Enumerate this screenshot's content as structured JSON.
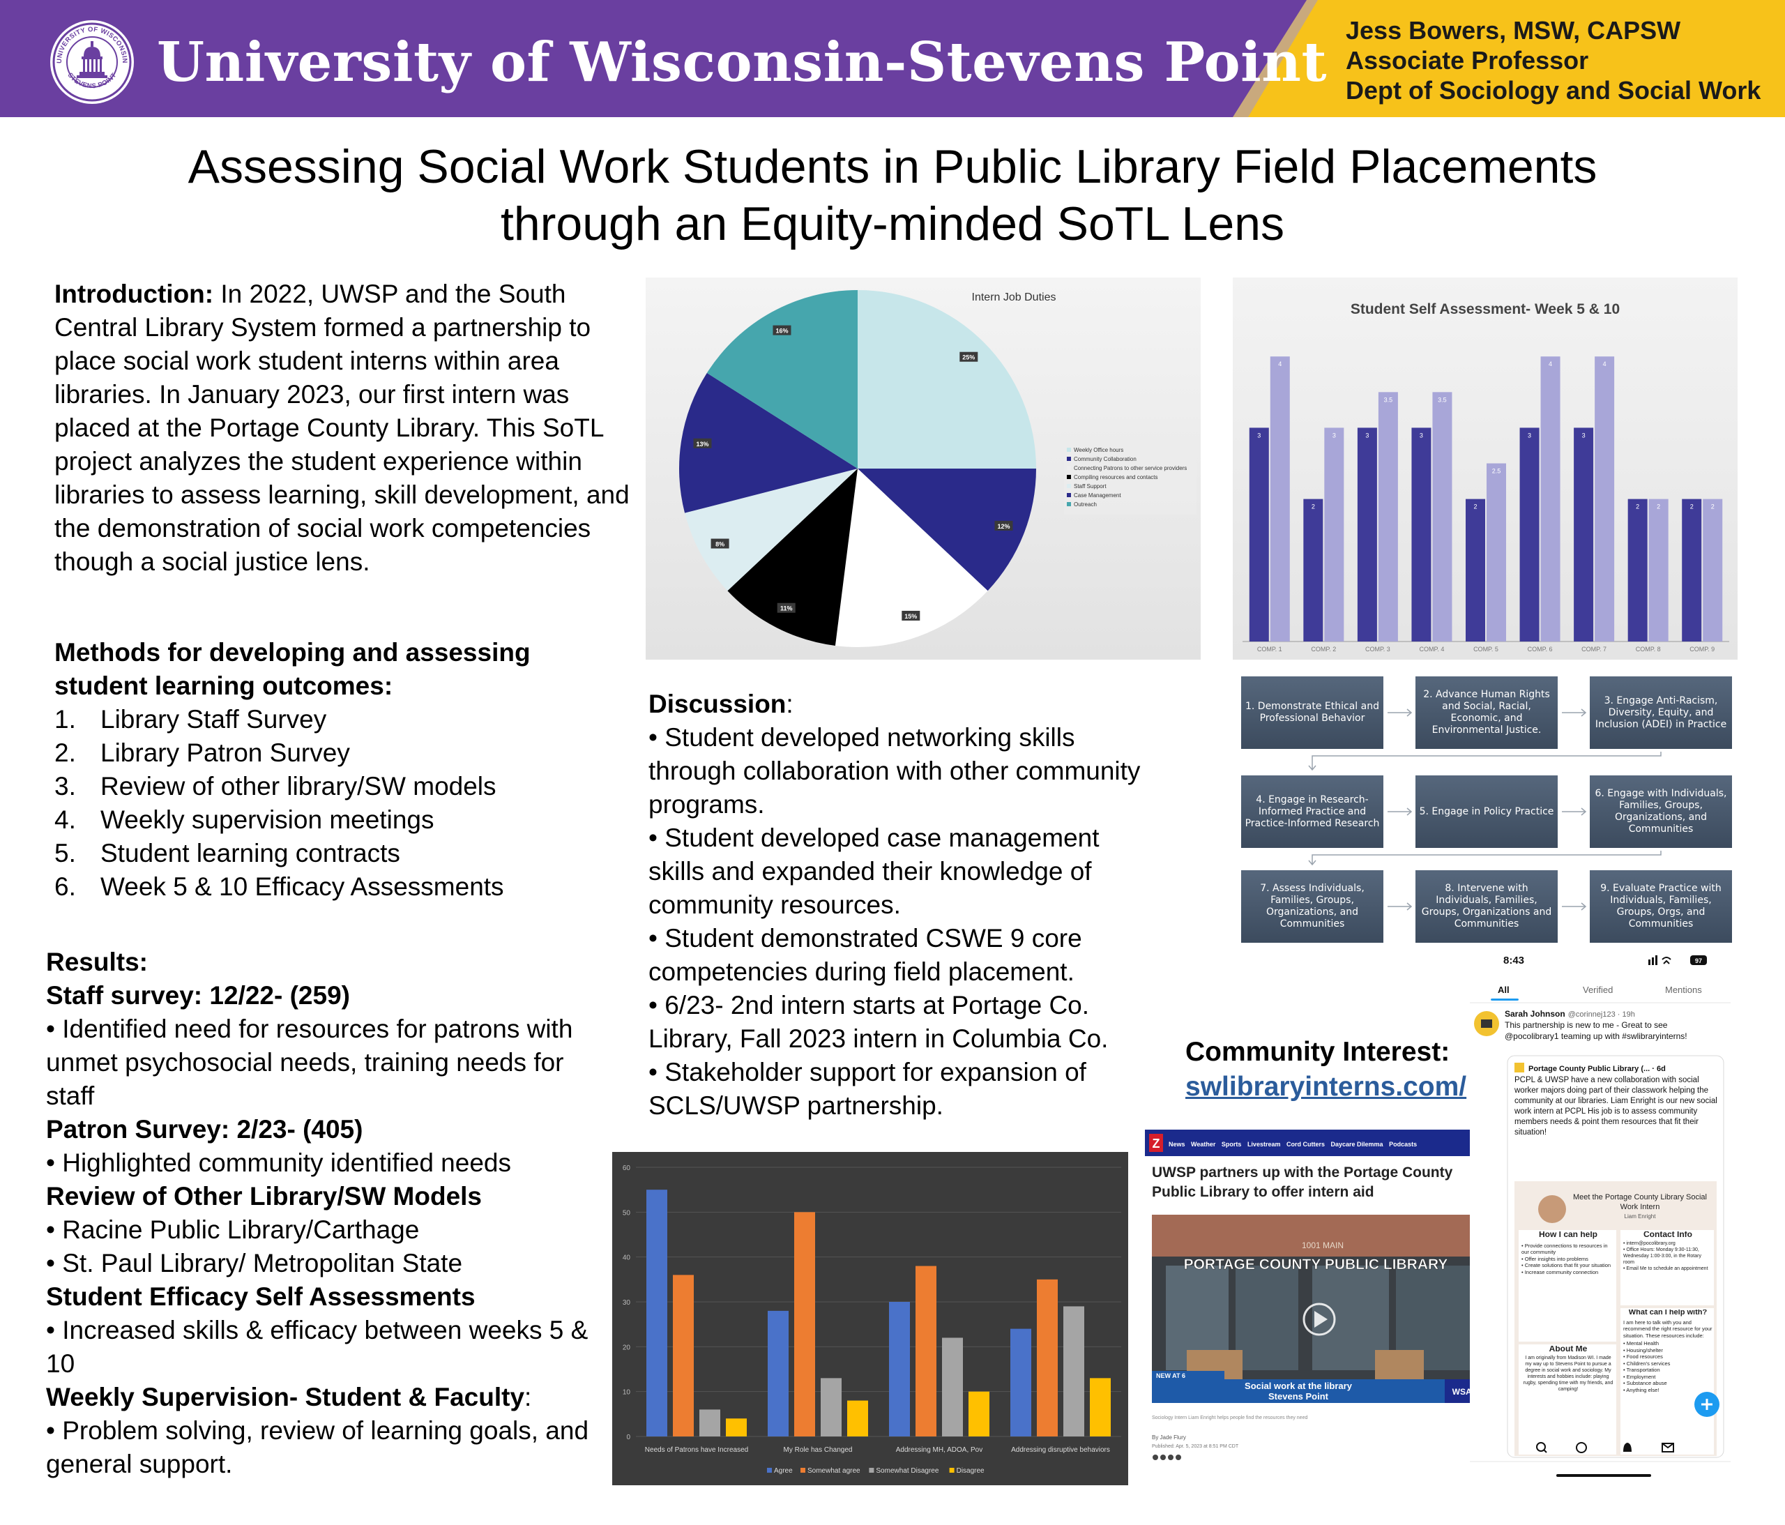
{
  "header": {
    "university": "University of Wisconsin-Stevens Point",
    "seal_top": "UNIVERSITY OF WISCONSIN",
    "seal_bottom": "STEVENS POINT",
    "author_name": "Jess Bowers, MSW, CAPSW",
    "author_title": "Associate Professor",
    "author_dept": "Dept of Sociology and Social Work",
    "colors": {
      "purple": "#6a3fa0",
      "gold": "#f7c21a"
    }
  },
  "title": {
    "line1": "Assessing Social Work Students in Public Library Field Placements",
    "line2": "through an Equity-minded SoTL Lens"
  },
  "intro": {
    "label": "Introduction:",
    "text": " In 2022, UWSP and the South Central Library System formed a partnership to place social work student interns within area libraries. In January 2023, our first intern was placed at the Portage County Library. This SoTL project analyzes the student experience within libraries to assess learning, skill development, and the demonstration of social work competencies though a social justice lens."
  },
  "methods": {
    "heading": "Methods for developing and assessing student learning outcomes:",
    "items": [
      {
        "n": "1.",
        "text": "Library Staff Survey"
      },
      {
        "n": "2.",
        "text": "Library Patron Survey"
      },
      {
        "n": "3.",
        "text": "Review of other library/SW models"
      },
      {
        "n": "4.",
        "text": "Weekly supervision meetings"
      },
      {
        "n": "5.",
        "text": "Student learning contracts"
      },
      {
        "n": "6.",
        "text": "Week 5 & 10 Efficacy Assessments"
      }
    ]
  },
  "results": {
    "heading": "Results:",
    "staff_heading": "Staff survey: 12/22- (259)",
    "staff_text": "• Identified need for resources for patrons with unmet psychosocial needs, training needs for staff",
    "patron_heading": "Patron Survey: 2/23- (405)",
    "patron_text": "• Highlighted community identified needs",
    "review_heading": "Review of Other Library/SW Models",
    "review_items": [
      "• Racine Public Library/Carthage",
      "• St. Paul Library/ Metropolitan State"
    ],
    "efficacy_heading": "Student Efficacy Self Assessments",
    "efficacy_text": "• Increased skills & efficacy between weeks 5 & 10",
    "weekly_heading": "Weekly Supervision- Student & Faculty",
    "weekly_colon": ":",
    "weekly_text": "• Problem solving, review of learning goals, and general support."
  },
  "discussion": {
    "heading": "Discussion",
    "colon": ":",
    "items": [
      "• Student developed networking skills through collaboration with other community programs.",
      "• Student developed case management skills and expanded their knowledge of community resources.",
      "• Student demonstrated CSWE 9 core competencies during field placement.",
      "•  6/23- 2nd intern starts at Portage Co. Library, Fall 2023 intern in Columbia Co.",
      "• Stakeholder support for expansion of SCLS/UWSP partnership."
    ]
  },
  "community": {
    "heading": "Community Interest:",
    "link": "swlibraryinterns.com/"
  },
  "chart_data": [
    {
      "type": "pie",
      "title": "Intern Job Duties",
      "slices": [
        {
          "label": "Weekly Office hours",
          "value": 25,
          "label_text": "25%",
          "color": "#c7e6ea"
        },
        {
          "label": "Community Collaboration",
          "value": 12,
          "label_text": "12%",
          "color": "#2a2a8a"
        },
        {
          "label": "Connecting Patrons to other service providers",
          "value": 15,
          "label_text": "15%",
          "color": "#ffffff"
        },
        {
          "label": "Compiling resources and contacts",
          "value": 11,
          "label_text": "11%",
          "color": "#000000"
        },
        {
          "label": "Staff Support",
          "value": 8,
          "label_text": "8%",
          "color": "#dcedf1"
        },
        {
          "label": "Case Management",
          "value": 13,
          "label_text": "13%",
          "color": "#2a2a8a"
        },
        {
          "label": "Outreach",
          "value": 16,
          "label_text": "16%",
          "color": "#46a6ad"
        }
      ],
      "legend": "right"
    },
    {
      "type": "bar",
      "title": "Student Self Assessment- Week 5 & 10",
      "categories": [
        "COMP. 1",
        "COMP. 2",
        "COMP. 3",
        "COMP. 4",
        "COMP. 5",
        "COMP. 6",
        "COMP. 7",
        "COMP. 8",
        "COMP. 9"
      ],
      "series": [
        {
          "values": [
            3,
            2,
            3,
            3,
            2,
            3,
            3,
            2,
            2
          ],
          "labels": [
            "3",
            "2",
            "3",
            "3",
            "2",
            "3",
            "3",
            "2",
            "2"
          ],
          "color": "#3f3b98"
        },
        {
          "values": [
            4,
            3,
            3.5,
            3.5,
            2.5,
            4,
            4,
            2,
            2
          ],
          "labels": [
            "4",
            "3",
            "3.5",
            "3.5",
            "2.5",
            "4",
            "4",
            "2",
            "2"
          ],
          "color": "#a8a6d8"
        }
      ],
      "ylim": [
        0,
        4.6
      ]
    },
    {
      "type": "bar",
      "categories": [
        "Needs of Patrons have Increased",
        "My Role has Changed",
        "Addressing MH, ADOA, Pov",
        "Addressing disruptive behaviors"
      ],
      "series": [
        {
          "name": "Agree",
          "values": [
            55,
            28,
            30,
            24
          ],
          "color": "#4a72c9"
        },
        {
          "name": "Somewhat agree",
          "values": [
            36,
            50,
            38,
            35
          ],
          "color": "#ed7d31"
        },
        {
          "name": "Somewhat Disagree",
          "values": [
            6,
            13,
            22,
            29
          ],
          "color": "#a5a5a5"
        },
        {
          "name": "Disagree",
          "values": [
            4,
            8,
            10,
            13
          ],
          "color": "#ffc000"
        }
      ],
      "yticks": [
        "0",
        "10",
        "20",
        "30",
        "40",
        "50",
        "60"
      ],
      "ylim": [
        0,
        60
      ],
      "legend": "bottom",
      "grid": true
    }
  ],
  "competencies": [
    "1. Demonstrate Ethical and Professional Behavior",
    "2. Advance Human Rights and Social, Racial, Economic, and Environmental Justice.",
    "3. Engage Anti-Racism, Diversity, Equity, and Inclusion (ADEI) in Practice",
    "4. Engage in Research-Informed Practice and Practice-Informed Research",
    "5. Engage in Policy Practice",
    "6. Engage with Individuals, Families, Groups, Organizations, and Communities",
    "7. Assess Individuals, Families, Groups, Organizations, and Communities",
    "8. Intervene with Individuals, Families, Groups, Organizations and Communities",
    "9. Evaluate Practice with Individuals, Families, Groups, Orgs, and Communities"
  ],
  "news": {
    "nav": [
      "Z",
      "News",
      "Weather",
      "Sports",
      "Livestream",
      "Cord Cutters",
      "Daycare Dilemma",
      "Podcasts"
    ],
    "headline": "UWSP partners up with the Portage County Public Library to offer intern aid",
    "sign_main": "PORTAGE COUNTY PUBLIC LIBRARY",
    "sign_address": "1001 MAIN",
    "new_at": "NEW AT 6",
    "lower_third": "Social work at the library",
    "lower_third_2": "Stevens Point",
    "station": "WSAW",
    "caption": "Sociology Intern Liam Enright helps people find the resources they need",
    "byline": "By Jade Flury",
    "published": "Published: Apr. 5, 2023 at 8:51 PM CDT"
  },
  "phone": {
    "time": "8:43",
    "battery": "97",
    "tabs": [
      "All",
      "Verified",
      "Mentions"
    ],
    "user": "Sarah Johnson",
    "handle": "@corinnej123 · 19h",
    "tweet": "This partnership is new to me - Great to see @pocolibrary1 teaming up with #swlibraryinterns!",
    "quoted_user": "Portage County Public Library (... · 6d",
    "quoted_text": "PCPL & UWSP have a new collaboration with social worker majors doing part of their classwork helping the community at our libraries. Liam Enright is our new social work intern at PCPL His job is to assess community members needs & point them resources that fit their situation!",
    "flyer_title": "Meet the Portage County Library Social Work Intern",
    "flyer_name": "Liam Enright",
    "help_heading": "How I can help",
    "help_items": [
      "• Provide connections to resources in our community",
      "• Offer insights into problems",
      "• Create solutions that fit your situation",
      "• Increase community connection"
    ],
    "contact_heading": "Contact Info",
    "contact_items": [
      "• intern@pocolibrary.org",
      "• Office Hours: Monday 9:30-11:30, Wednesday 1:00-3:00, in the Rotary room",
      "• Email Me to schedule an appointment"
    ],
    "what_heading": "What can I help with?",
    "what_text": "I am here to talk with you and recommend the right resource for your situation. These resources include:",
    "what_items": [
      "• Mental Health",
      "• Housing/shelter",
      "• Food resources",
      "• Children's services",
      "• Transportation",
      "• Employment",
      "• Substance abuse",
      "• Anything else!"
    ],
    "about_heading": "About Me",
    "about_text": "I am originally from Madison WI. I made my way up to Stevens Point to pursue a degree in social work and sociology. My interests and hobbies include: playing rugby, spending time with my friends, and camping!"
  }
}
